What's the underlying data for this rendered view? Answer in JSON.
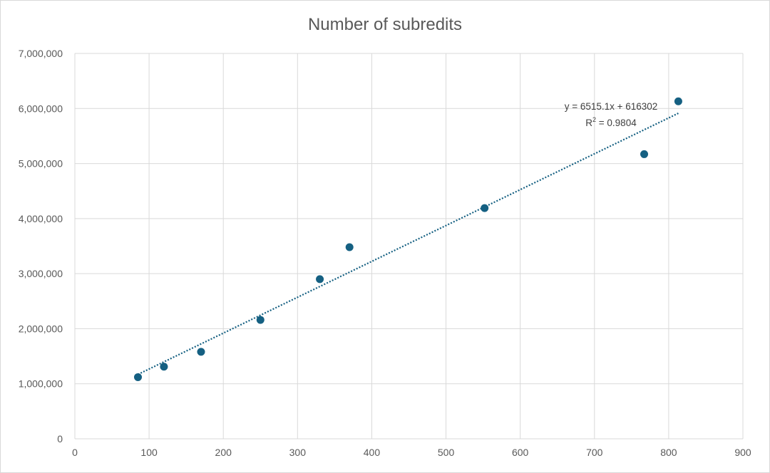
{
  "chart_data": {
    "type": "scatter",
    "title": "Number of subredits",
    "xlabel": "",
    "ylabel": "",
    "xlim": [
      0,
      900
    ],
    "ylim": [
      0,
      7000000
    ],
    "x_ticks": [
      0,
      100,
      200,
      300,
      400,
      500,
      600,
      700,
      800,
      900
    ],
    "y_ticks": [
      0,
      1000000,
      2000000,
      3000000,
      4000000,
      5000000,
      6000000,
      7000000
    ],
    "x_tick_labels": [
      "0",
      "100",
      "200",
      "300",
      "400",
      "500",
      "600",
      "700",
      "800",
      "900"
    ],
    "y_tick_labels": [
      "0",
      "1,000,000",
      "2,000,000",
      "3,000,000",
      "4,000,000",
      "5,000,000",
      "6,000,000",
      "7,000,000"
    ],
    "grid": true,
    "legend": false,
    "series": [
      {
        "x": [
          85,
          120,
          170,
          250,
          330,
          370,
          552,
          767,
          813
        ],
        "y": [
          1120000,
          1310000,
          1580000,
          2160000,
          2900000,
          3480000,
          4190000,
          5170000,
          6130000
        ]
      }
    ],
    "trendline": {
      "type": "linear",
      "slope": 6515.1,
      "intercept": 616302,
      "x_range": [
        85,
        813
      ],
      "equation": "y = 6515.1x + 616302",
      "r2_label": "R",
      "r2_sup": "2",
      "r2_value": " = 0.9804"
    },
    "colors": {
      "marker": "#156082",
      "trendline": "#156082",
      "grid": "#d9d9d9",
      "text": "#595959"
    }
  }
}
